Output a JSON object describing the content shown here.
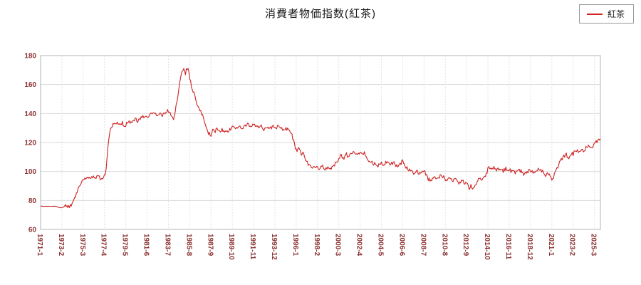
{
  "title": "消費者物価指数(紅茶)",
  "legend": {
    "label": "紅茶",
    "color": "#cc2222"
  },
  "colors": {
    "series": "#cc2222",
    "axis_labels": "#8b3333",
    "grid_h": "#d9d9d9",
    "grid_v": "#e2e2e2",
    "plot_border": "#b3b3b3",
    "background": "#ffffff"
  },
  "chart_data": {
    "type": "line",
    "title": "消費者物価指数(紅茶)",
    "xlabel": "",
    "ylabel": "",
    "ylim": [
      60,
      180
    ],
    "y_ticks": [
      60,
      80,
      100,
      120,
      140,
      160,
      180
    ],
    "x_range": [
      1971.0,
      2025.75
    ],
    "x_tick_labels": [
      "1971-1",
      "1973-2",
      "1975-3",
      "1977-4",
      "1979-5",
      "1981-6",
      "1983-7",
      "1985-8",
      "1987-9",
      "1989-10",
      "1991-11",
      "1993-12",
      "1996-1",
      "1998-2",
      "2000-3",
      "2002-4",
      "2004-5",
      "2006-6",
      "2008-7",
      "2010-8",
      "2012-9",
      "2014-10",
      "2016-11",
      "2018-12",
      "2021-1",
      "2023-2",
      "2025-3"
    ],
    "grid": true,
    "legend_position": "top-right",
    "series": [
      {
        "name": "紅茶",
        "color": "#cc2222",
        "points": [
          [
            1971.0,
            76
          ],
          [
            1971.5,
            76
          ],
          [
            1972.0,
            76
          ],
          [
            1972.5,
            76
          ],
          [
            1972.9,
            75
          ],
          [
            1973.1,
            75
          ],
          [
            1973.4,
            76
          ],
          [
            1973.8,
            76
          ],
          [
            1974.0,
            77
          ],
          [
            1974.25,
            80
          ],
          [
            1974.5,
            85
          ],
          [
            1974.75,
            90
          ],
          [
            1975.0,
            93
          ],
          [
            1975.2,
            95
          ],
          [
            1975.4,
            94
          ],
          [
            1975.6,
            96
          ],
          [
            1975.8,
            95
          ],
          [
            1976.0,
            97
          ],
          [
            1976.3,
            96
          ],
          [
            1976.6,
            97
          ],
          [
            1976.9,
            95
          ],
          [
            1977.1,
            96
          ],
          [
            1977.3,
            97
          ],
          [
            1977.45,
            104
          ],
          [
            1977.6,
            118
          ],
          [
            1977.75,
            127
          ],
          [
            1977.9,
            131
          ],
          [
            1978.1,
            133
          ],
          [
            1978.4,
            134
          ],
          [
            1978.7,
            132
          ],
          [
            1979.0,
            134
          ],
          [
            1979.2,
            130
          ],
          [
            1979.4,
            133
          ],
          [
            1979.6,
            135
          ],
          [
            1979.9,
            134
          ],
          [
            1980.2,
            136
          ],
          [
            1980.5,
            135
          ],
          [
            1980.8,
            137
          ],
          [
            1981.1,
            138
          ],
          [
            1981.4,
            137
          ],
          [
            1981.7,
            139
          ],
          [
            1982.0,
            140
          ],
          [
            1982.3,
            139
          ],
          [
            1982.6,
            140
          ],
          [
            1982.9,
            139
          ],
          [
            1983.2,
            141
          ],
          [
            1983.5,
            142
          ],
          [
            1983.7,
            140
          ],
          [
            1983.9,
            136
          ],
          [
            1984.1,
            138
          ],
          [
            1984.3,
            147
          ],
          [
            1984.5,
            156
          ],
          [
            1984.7,
            165
          ],
          [
            1984.85,
            170
          ],
          [
            1985.0,
            171
          ],
          [
            1985.15,
            167
          ],
          [
            1985.3,
            171
          ],
          [
            1985.45,
            170
          ],
          [
            1985.6,
            164
          ],
          [
            1985.8,
            157
          ],
          [
            1986.0,
            154
          ],
          [
            1986.2,
            149
          ],
          [
            1986.45,
            144
          ],
          [
            1986.7,
            141
          ],
          [
            1986.9,
            137
          ],
          [
            1987.1,
            133
          ],
          [
            1987.3,
            128
          ],
          [
            1987.5,
            126
          ],
          [
            1987.65,
            124
          ],
          [
            1987.8,
            129
          ],
          [
            1988.0,
            127
          ],
          [
            1988.3,
            130
          ],
          [
            1988.6,
            128
          ],
          [
            1988.9,
            129
          ],
          [
            1989.2,
            127
          ],
          [
            1989.5,
            129
          ],
          [
            1989.8,
            131
          ],
          [
            1990.1,
            130
          ],
          [
            1990.4,
            132
          ],
          [
            1990.7,
            130
          ],
          [
            1991.0,
            132
          ],
          [
            1991.3,
            133
          ],
          [
            1991.6,
            131
          ],
          [
            1991.9,
            132
          ],
          [
            1992.2,
            130
          ],
          [
            1992.5,
            132
          ],
          [
            1992.8,
            129
          ],
          [
            1993.1,
            131
          ],
          [
            1993.4,
            129
          ],
          [
            1993.7,
            131
          ],
          [
            1994.0,
            130
          ],
          [
            1994.3,
            131
          ],
          [
            1994.6,
            129
          ],
          [
            1994.9,
            130
          ],
          [
            1995.2,
            129
          ],
          [
            1995.5,
            127
          ],
          [
            1995.7,
            122
          ],
          [
            1995.9,
            117
          ],
          [
            1996.1,
            114
          ],
          [
            1996.3,
            116
          ],
          [
            1996.5,
            112
          ],
          [
            1996.7,
            114
          ],
          [
            1996.9,
            109
          ],
          [
            1997.1,
            106
          ],
          [
            1997.3,
            104
          ],
          [
            1997.6,
            102
          ],
          [
            1997.9,
            103
          ],
          [
            1998.2,
            102
          ],
          [
            1998.5,
            104
          ],
          [
            1998.8,
            102
          ],
          [
            1999.1,
            103
          ],
          [
            1999.4,
            102
          ],
          [
            1999.7,
            104
          ],
          [
            1999.9,
            106
          ],
          [
            2000.1,
            108
          ],
          [
            2000.3,
            111
          ],
          [
            2000.5,
            110
          ],
          [
            2000.7,
            109
          ],
          [
            2000.9,
            112
          ],
          [
            2001.1,
            110
          ],
          [
            2001.4,
            112
          ],
          [
            2001.7,
            113
          ],
          [
            2002.0,
            111
          ],
          [
            2002.3,
            114
          ],
          [
            2002.5,
            112
          ],
          [
            2002.7,
            113
          ],
          [
            2002.9,
            110
          ],
          [
            2003.1,
            108
          ],
          [
            2003.4,
            106
          ],
          [
            2003.7,
            105
          ],
          [
            2004.0,
            104
          ],
          [
            2004.3,
            106
          ],
          [
            2004.6,
            105
          ],
          [
            2004.9,
            107
          ],
          [
            2005.2,
            105
          ],
          [
            2005.5,
            106
          ],
          [
            2005.8,
            104
          ],
          [
            2006.1,
            105
          ],
          [
            2006.4,
            107
          ],
          [
            2006.6,
            104
          ],
          [
            2006.9,
            102
          ],
          [
            2007.2,
            100
          ],
          [
            2007.5,
            99
          ],
          [
            2007.8,
            101
          ],
          [
            2008.1,
            98
          ],
          [
            2008.4,
            101
          ],
          [
            2008.6,
            99
          ],
          [
            2008.9,
            95
          ],
          [
            2009.2,
            94
          ],
          [
            2009.5,
            96
          ],
          [
            2009.8,
            95
          ],
          [
            2010.1,
            97
          ],
          [
            2010.4,
            96
          ],
          [
            2010.7,
            94
          ],
          [
            2011.0,
            95
          ],
          [
            2011.3,
            93
          ],
          [
            2011.6,
            95
          ],
          [
            2011.9,
            92
          ],
          [
            2012.2,
            94
          ],
          [
            2012.5,
            91
          ],
          [
            2012.7,
            93
          ],
          [
            2012.9,
            88
          ],
          [
            2013.1,
            91
          ],
          [
            2013.3,
            87
          ],
          [
            2013.5,
            90
          ],
          [
            2013.7,
            93
          ],
          [
            2013.9,
            95
          ],
          [
            2014.1,
            94
          ],
          [
            2014.4,
            96
          ],
          [
            2014.6,
            98
          ],
          [
            2014.8,
            104
          ],
          [
            2015.0,
            102
          ],
          [
            2015.3,
            103
          ],
          [
            2015.6,
            101
          ],
          [
            2015.9,
            102
          ],
          [
            2016.2,
            100
          ],
          [
            2016.5,
            102
          ],
          [
            2016.8,
            101
          ],
          [
            2017.1,
            100
          ],
          [
            2017.4,
            99
          ],
          [
            2017.7,
            101
          ],
          [
            2018.0,
            100
          ],
          [
            2018.3,
            98
          ],
          [
            2018.6,
            100
          ],
          [
            2018.9,
            101
          ],
          [
            2019.2,
            99
          ],
          [
            2019.5,
            101
          ],
          [
            2019.8,
            102
          ],
          [
            2020.1,
            100
          ],
          [
            2020.4,
            97
          ],
          [
            2020.7,
            99
          ],
          [
            2020.9,
            95
          ],
          [
            2021.1,
            94
          ],
          [
            2021.3,
            100
          ],
          [
            2021.5,
            102
          ],
          [
            2021.7,
            105
          ],
          [
            2021.9,
            108
          ],
          [
            2022.1,
            110
          ],
          [
            2022.4,
            112
          ],
          [
            2022.6,
            109
          ],
          [
            2022.9,
            113
          ],
          [
            2023.1,
            112
          ],
          [
            2023.4,
            115
          ],
          [
            2023.6,
            113
          ],
          [
            2023.9,
            116
          ],
          [
            2024.1,
            114
          ],
          [
            2024.4,
            117
          ],
          [
            2024.7,
            118
          ],
          [
            2024.9,
            116
          ],
          [
            2025.1,
            119
          ],
          [
            2025.3,
            120
          ],
          [
            2025.5,
            121
          ],
          [
            2025.7,
            122
          ]
        ]
      }
    ]
  }
}
